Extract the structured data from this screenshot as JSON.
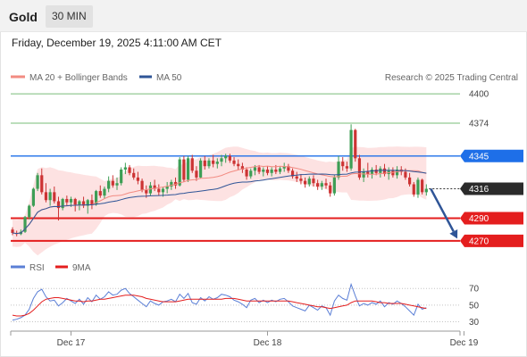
{
  "header": {
    "title": "Gold",
    "timeframe": "30 MIN",
    "datetime": "Friday, December 19, 2025 4:11:00 AM CET"
  },
  "copyright": "Research © 2025 Trading Central",
  "chart_data": [
    {
      "type": "candlestick",
      "legend_position": "top-left",
      "legend": [
        {
          "label": "MA 20 + Bollinger Bands",
          "color": "#f28b82"
        },
        {
          "label": "MA 50",
          "color": "#2f5597"
        }
      ],
      "ylim": [
        4262,
        4404
      ],
      "x_ticks": [
        {
          "label": "Dec 17",
          "bar": 14
        },
        {
          "label": "Dec 18",
          "bar": 61
        },
        {
          "label": "Dec 19",
          "bar": 108
        }
      ],
      "levels": [
        {
          "value": 4400,
          "label": "4400",
          "kind": "target",
          "color": "#4ca64c"
        },
        {
          "value": 4374,
          "label": "4374",
          "kind": "target",
          "color": "#4ca64c"
        },
        {
          "value": 4345,
          "label": "4345",
          "kind": "resistance",
          "color": "#1e6fe8"
        },
        {
          "value": 4316,
          "label": "4316",
          "kind": "last",
          "color": "#2b2b2b"
        },
        {
          "value": 4290,
          "label": "4290",
          "kind": "support",
          "color": "#e41e1e"
        },
        {
          "value": 4270,
          "label": "4270",
          "kind": "support",
          "color": "#e41e1e"
        }
      ],
      "arrow": {
        "from": 4316,
        "to": 4272,
        "color": "#2f5597"
      },
      "candles": [
        [
          4280,
          4282,
          4275,
          4277
        ],
        [
          4277,
          4279,
          4274,
          4276
        ],
        [
          4276,
          4280,
          4275,
          4278
        ],
        [
          4278,
          4292,
          4277,
          4291
        ],
        [
          4291,
          4302,
          4289,
          4301
        ],
        [
          4301,
          4317,
          4300,
          4316
        ],
        [
          4316,
          4330,
          4314,
          4328
        ],
        [
          4328,
          4334,
          4311,
          4313
        ],
        [
          4313,
          4321,
          4304,
          4306
        ],
        [
          4306,
          4316,
          4301,
          4313
        ],
        [
          4313,
          4318,
          4303,
          4305
        ],
        [
          4305,
          4309,
          4288,
          4299
        ],
        [
          4299,
          4308,
          4297,
          4307
        ],
        [
          4307,
          4310,
          4301,
          4304
        ],
        [
          4304,
          4309,
          4300,
          4307
        ],
        [
          4307,
          4308,
          4296,
          4302
        ],
        [
          4302,
          4306,
          4297,
          4305
        ],
        [
          4305,
          4309,
          4299,
          4301
        ],
        [
          4301,
          4307,
          4294,
          4306
        ],
        [
          4306,
          4311,
          4298,
          4302
        ],
        [
          4302,
          4315,
          4301,
          4314
        ],
        [
          4314,
          4319,
          4308,
          4310
        ],
        [
          4310,
          4318,
          4307,
          4316
        ],
        [
          4316,
          4327,
          4313,
          4323
        ],
        [
          4323,
          4328,
          4317,
          4319
        ],
        [
          4319,
          4326,
          4315,
          4321
        ],
        [
          4321,
          4335,
          4319,
          4333
        ],
        [
          4333,
          4339,
          4329,
          4335
        ],
        [
          4335,
          4337,
          4328,
          4330
        ],
        [
          4330,
          4334,
          4324,
          4326
        ],
        [
          4326,
          4331,
          4320,
          4323
        ],
        [
          4323,
          4325,
          4313,
          4315
        ],
        [
          4315,
          4319,
          4308,
          4312
        ],
        [
          4312,
          4322,
          4310,
          4319
        ],
        [
          4319,
          4324,
          4314,
          4316
        ],
        [
          4316,
          4320,
          4310,
          4313
        ],
        [
          4313,
          4318,
          4309,
          4316
        ],
        [
          4316,
          4322,
          4312,
          4318
        ],
        [
          4318,
          4324,
          4315,
          4322
        ],
        [
          4322,
          4326,
          4316,
          4319
        ],
        [
          4319,
          4344,
          4318,
          4342
        ],
        [
          4342,
          4345,
          4322,
          4324
        ],
        [
          4324,
          4345,
          4322,
          4343
        ],
        [
          4343,
          4346,
          4330,
          4332
        ],
        [
          4332,
          4336,
          4323,
          4326
        ],
        [
          4326,
          4343,
          4325,
          4341
        ],
        [
          4341,
          4345,
          4333,
          4336
        ],
        [
          4336,
          4343,
          4334,
          4341
        ],
        [
          4341,
          4346,
          4335,
          4338
        ],
        [
          4338,
          4343,
          4334,
          4340
        ],
        [
          4340,
          4346,
          4336,
          4343
        ],
        [
          4343,
          4347,
          4339,
          4345
        ],
        [
          4345,
          4347,
          4339,
          4341
        ],
        [
          4341,
          4344,
          4336,
          4338
        ],
        [
          4338,
          4342,
          4333,
          4336
        ],
        [
          4336,
          4339,
          4330,
          4333
        ],
        [
          4333,
          4335,
          4324,
          4327
        ],
        [
          4327,
          4334,
          4325,
          4332
        ],
        [
          4332,
          4337,
          4328,
          4335
        ],
        [
          4335,
          4337,
          4329,
          4331
        ],
        [
          4331,
          4335,
          4327,
          4333
        ],
        [
          4333,
          4336,
          4328,
          4330
        ],
        [
          4330,
          4335,
          4327,
          4333
        ],
        [
          4333,
          4337,
          4329,
          4331
        ],
        [
          4331,
          4336,
          4329,
          4334
        ],
        [
          4334,
          4339,
          4331,
          4336
        ],
        [
          4336,
          4338,
          4330,
          4332
        ],
        [
          4332,
          4334,
          4325,
          4327
        ],
        [
          4327,
          4331,
          4322,
          4325
        ],
        [
          4325,
          4329,
          4320,
          4323
        ],
        [
          4323,
          4326,
          4317,
          4320
        ],
        [
          4320,
          4327,
          4318,
          4325
        ],
        [
          4325,
          4328,
          4318,
          4321
        ],
        [
          4321,
          4324,
          4315,
          4318
        ],
        [
          4318,
          4323,
          4315,
          4321
        ],
        [
          4321,
          4325,
          4316,
          4319
        ],
        [
          4319,
          4322,
          4309,
          4312
        ],
        [
          4312,
          4328,
          4310,
          4326
        ],
        [
          4326,
          4345,
          4324,
          4340
        ],
        [
          4340,
          4344,
          4332,
          4336
        ],
        [
          4336,
          4340,
          4331,
          4334
        ],
        [
          4334,
          4373,
          4332,
          4368
        ],
        [
          4368,
          4369,
          4340,
          4343
        ],
        [
          4343,
          4346,
          4324,
          4326
        ],
        [
          4326,
          4334,
          4322,
          4331
        ],
        [
          4331,
          4339,
          4326,
          4329
        ],
        [
          4329,
          4335,
          4325,
          4333
        ],
        [
          4333,
          4337,
          4328,
          4330
        ],
        [
          4330,
          4336,
          4326,
          4334
        ],
        [
          4334,
          4338,
          4327,
          4329
        ],
        [
          4329,
          4335,
          4324,
          4332
        ],
        [
          4332,
          4335,
          4326,
          4328
        ],
        [
          4328,
          4336,
          4325,
          4333
        ],
        [
          4333,
          4336,
          4328,
          4331
        ],
        [
          4331,
          4334,
          4324,
          4326
        ],
        [
          4326,
          4330,
          4318,
          4320
        ],
        [
          4320,
          4322,
          4309,
          4311
        ],
        [
          4311,
          4326,
          4308,
          4324
        ],
        [
          4324,
          4325,
          4311,
          4313
        ],
        [
          4313,
          4320,
          4310,
          4316
        ]
      ]
    },
    {
      "type": "line",
      "legend_position": "top-left",
      "series": [
        {
          "name": "RSI",
          "color": "#5b7fd6",
          "values": [
            32,
            33,
            35,
            38,
            45,
            58,
            66,
            69,
            60,
            55,
            56,
            49,
            53,
            58,
            55,
            52,
            57,
            51,
            59,
            54,
            62,
            57,
            60,
            66,
            62,
            63,
            68,
            70,
            64,
            60,
            56,
            52,
            48,
            55,
            52,
            50,
            54,
            55,
            57,
            54,
            63,
            58,
            64,
            53,
            51,
            59,
            55,
            60,
            57,
            59,
            63,
            62,
            60,
            56,
            54,
            51,
            47,
            56,
            58,
            53,
            56,
            53,
            56,
            54,
            57,
            58,
            54,
            49,
            47,
            45,
            43,
            50,
            47,
            44,
            49,
            47,
            38,
            55,
            62,
            58,
            56,
            75,
            61,
            49,
            52,
            50,
            53,
            51,
            55,
            48,
            53,
            51,
            55,
            52,
            48,
            43,
            38,
            51,
            45,
            47
          ]
        },
        {
          "name": "9MA",
          "color": "#e41e1e",
          "values": [
            38,
            37,
            37,
            38,
            40,
            44,
            49,
            54,
            57,
            58,
            59,
            59,
            58,
            57,
            56,
            55,
            55,
            54,
            55,
            55,
            56,
            57,
            57,
            58,
            59,
            60,
            61,
            62,
            62,
            62,
            61,
            60,
            58,
            57,
            56,
            55,
            54,
            54,
            54,
            54,
            55,
            56,
            57,
            57,
            57,
            57,
            57,
            57,
            57,
            57,
            57,
            58,
            58,
            58,
            57,
            56,
            55,
            55,
            55,
            55,
            55,
            55,
            55,
            55,
            55,
            55,
            55,
            54,
            53,
            52,
            51,
            50,
            49,
            48,
            48,
            47,
            46,
            47,
            48,
            49,
            50,
            53,
            55,
            55,
            55,
            55,
            55,
            54,
            53,
            53,
            52,
            52,
            52,
            52,
            51,
            50,
            49,
            48,
            47,
            46
          ]
        }
      ],
      "yticks": [
        70,
        50,
        30
      ],
      "ylim": [
        22,
        82
      ]
    }
  ]
}
